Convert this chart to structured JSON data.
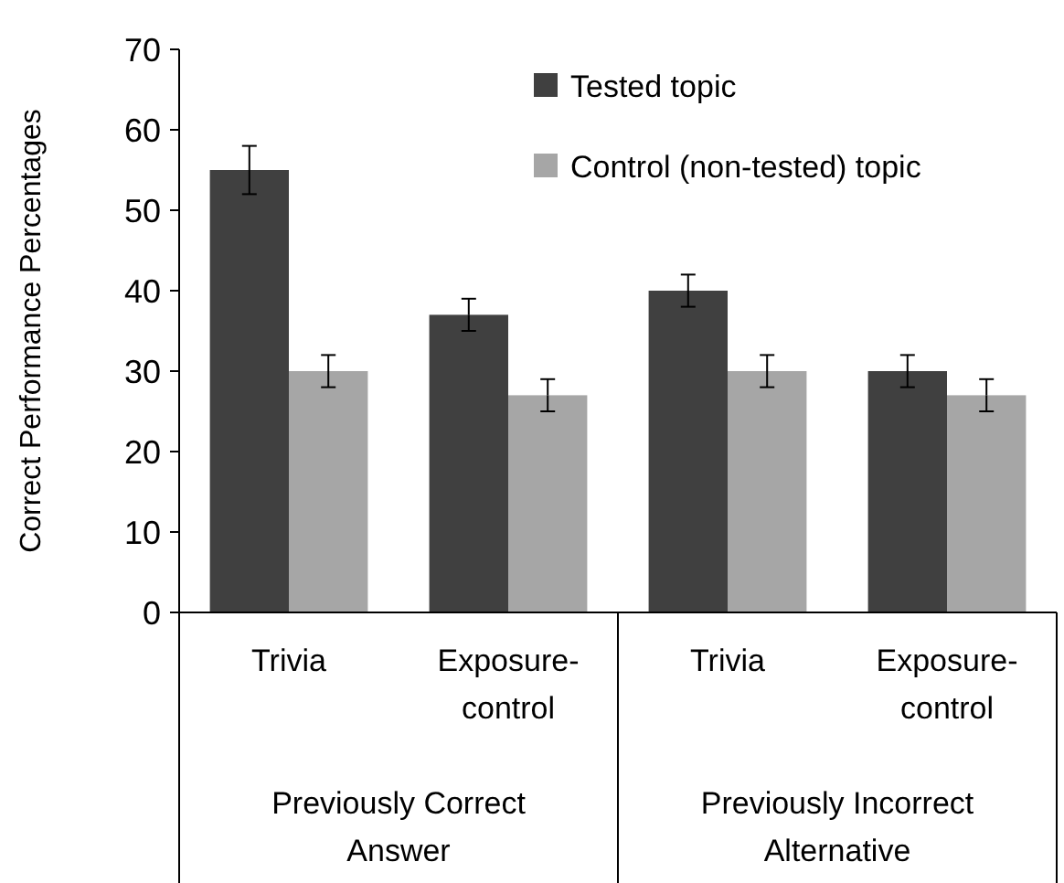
{
  "chart_data": {
    "type": "bar",
    "ylabel": "Correct Performance Percentages",
    "categories": [
      "Trivia",
      "Exposure-control",
      "Trivia",
      "Exposure-control"
    ],
    "series": [
      {
        "name": "Tested topic",
        "color": "#404040",
        "values": [
          55,
          37,
          40,
          30
        ],
        "errors": [
          3,
          2,
          2,
          2
        ]
      },
      {
        "name": "Control (non-tested) topic",
        "color": "#a6a6a6",
        "values": [
          30,
          27,
          30,
          27
        ],
        "errors": [
          2,
          2,
          2,
          2
        ]
      }
    ],
    "annotations": [
      "Previously Correct Answer",
      "Previously Incorrect Alternative"
    ],
    "ylim": [
      0,
      70
    ],
    "yticks": [
      0,
      10,
      20,
      30,
      40,
      50,
      60,
      70
    ],
    "legend": "top right",
    "grid": false
  }
}
